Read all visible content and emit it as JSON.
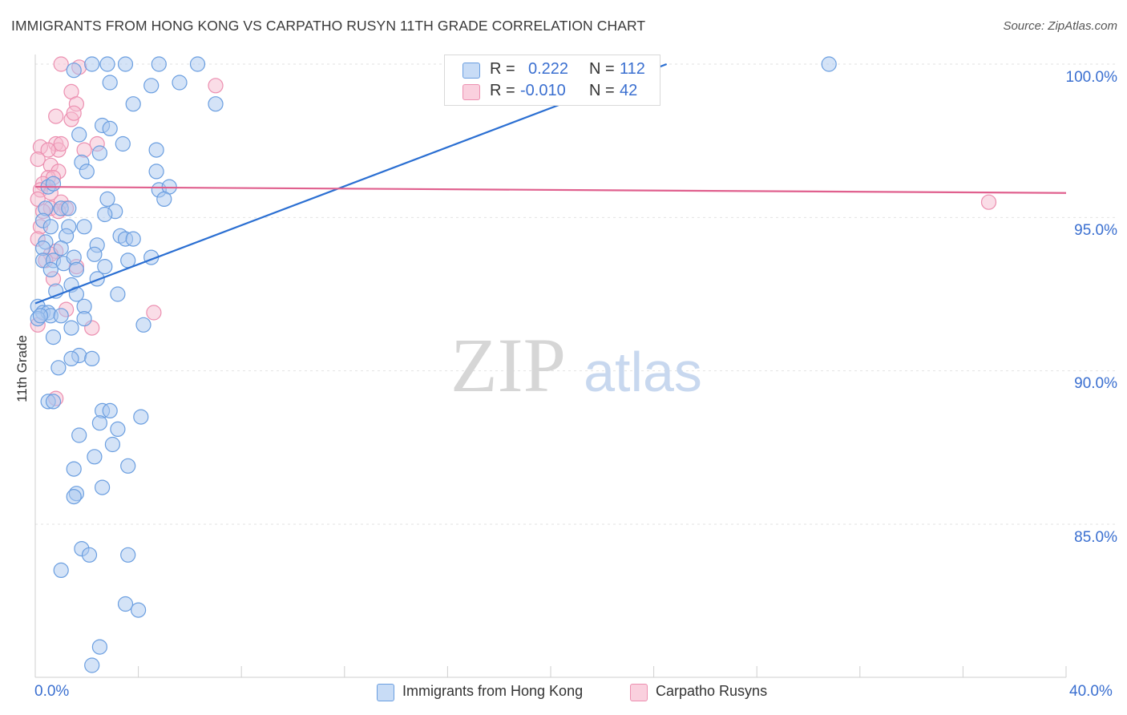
{
  "title": "IMMIGRANTS FROM HONG KONG VS CARPATHO RUSYN 11TH GRADE CORRELATION CHART",
  "source": "Source: ZipAtlas.com",
  "watermark": {
    "zip": "ZIP",
    "atlas": "atlas"
  },
  "colors": {
    "blue_fill": "#aac8f0",
    "blue_stroke": "#6a9ee0",
    "blue_line": "#2b6fd2",
    "pink_fill": "#f6bcd0",
    "pink_stroke": "#ec8fb0",
    "pink_line": "#e0608e",
    "tick_text": "#3a6fd0",
    "grid": "#e2e2e2"
  },
  "legend": {
    "rows": [
      {
        "r_label": "R =",
        "r_value": "0.222",
        "n_label": "N =",
        "n_value": "112"
      },
      {
        "r_label": "R =",
        "r_value": "-0.010",
        "n_label": "N =",
        "n_value": "42"
      }
    ]
  },
  "bottom_legend": [
    "Immigrants from Hong Kong",
    "Carpatho Rusyns"
  ],
  "x_ticks": {
    "left": "0.0%",
    "right": "40.0%"
  },
  "y_ticks": [
    "100.0%",
    "95.0%",
    "90.0%",
    "85.0%"
  ],
  "chart_data": {
    "type": "scatter",
    "title": "IMMIGRANTS FROM HONG KONG VS CARPATHO RUSYN 11TH GRADE CORRELATION CHART",
    "xlabel": "",
    "ylabel": "11th Grade",
    "xlim": [
      0,
      40
    ],
    "ylim": [
      80.3,
      100.4
    ],
    "y_gridlines": [
      100,
      95,
      90,
      85
    ],
    "series": [
      {
        "name": "Immigrants from Hong Kong",
        "color": "blue",
        "r": 0.222,
        "n": 112,
        "trend": {
          "x": [
            0,
            24.5
          ],
          "y": [
            92.2,
            100.0
          ]
        },
        "points": [
          [
            1.5,
            99.8
          ],
          [
            2.2,
            100.0
          ],
          [
            2.8,
            100.0
          ],
          [
            3.5,
            100.0
          ],
          [
            4.8,
            100.0
          ],
          [
            6.3,
            100.0
          ],
          [
            30.8,
            100.0
          ],
          [
            2.9,
            99.4
          ],
          [
            4.5,
            99.3
          ],
          [
            5.6,
            99.4
          ],
          [
            7.0,
            98.7
          ],
          [
            3.8,
            98.7
          ],
          [
            2.6,
            98.0
          ],
          [
            2.9,
            97.9
          ],
          [
            1.7,
            97.7
          ],
          [
            3.4,
            97.4
          ],
          [
            2.5,
            97.1
          ],
          [
            4.7,
            97.2
          ],
          [
            1.8,
            96.8
          ],
          [
            2.0,
            96.5
          ],
          [
            4.7,
            96.5
          ],
          [
            4.8,
            95.9
          ],
          [
            5.2,
            96.0
          ],
          [
            5.0,
            95.6
          ],
          [
            0.5,
            96.0
          ],
          [
            0.7,
            96.1
          ],
          [
            2.8,
            95.6
          ],
          [
            0.4,
            95.3
          ],
          [
            1.0,
            95.3
          ],
          [
            1.3,
            95.3
          ],
          [
            3.1,
            95.2
          ],
          [
            0.3,
            94.9
          ],
          [
            2.7,
            95.1
          ],
          [
            0.6,
            94.7
          ],
          [
            1.3,
            94.7
          ],
          [
            1.9,
            94.7
          ],
          [
            0.4,
            94.2
          ],
          [
            1.2,
            94.4
          ],
          [
            3.3,
            94.4
          ],
          [
            0.3,
            94.0
          ],
          [
            1.0,
            94.0
          ],
          [
            2.4,
            94.1
          ],
          [
            3.5,
            94.3
          ],
          [
            3.8,
            94.3
          ],
          [
            0.3,
            93.6
          ],
          [
            0.7,
            93.6
          ],
          [
            1.1,
            93.5
          ],
          [
            1.5,
            93.7
          ],
          [
            2.3,
            93.8
          ],
          [
            3.6,
            93.6
          ],
          [
            4.5,
            93.7
          ],
          [
            0.6,
            93.3
          ],
          [
            1.6,
            93.3
          ],
          [
            2.7,
            93.4
          ],
          [
            2.4,
            93.0
          ],
          [
            1.4,
            92.8
          ],
          [
            0.8,
            92.6
          ],
          [
            1.6,
            92.5
          ],
          [
            3.2,
            92.5
          ],
          [
            0.1,
            92.1
          ],
          [
            0.3,
            91.9
          ],
          [
            0.5,
            91.9
          ],
          [
            1.9,
            92.1
          ],
          [
            0.6,
            91.8
          ],
          [
            1.0,
            91.8
          ],
          [
            1.9,
            91.7
          ],
          [
            1.4,
            91.4
          ],
          [
            4.2,
            91.5
          ],
          [
            0.7,
            91.1
          ],
          [
            0.1,
            91.7
          ],
          [
            0.2,
            91.8
          ],
          [
            1.7,
            90.5
          ],
          [
            2.2,
            90.4
          ],
          [
            0.9,
            90.1
          ],
          [
            1.4,
            90.4
          ],
          [
            0.5,
            89.0
          ],
          [
            0.7,
            89.0
          ],
          [
            2.6,
            88.7
          ],
          [
            2.9,
            88.7
          ],
          [
            4.1,
            88.5
          ],
          [
            2.5,
            88.3
          ],
          [
            3.2,
            88.1
          ],
          [
            1.7,
            87.9
          ],
          [
            3.0,
            87.6
          ],
          [
            2.3,
            87.2
          ],
          [
            3.6,
            86.9
          ],
          [
            1.5,
            86.8
          ],
          [
            2.6,
            86.2
          ],
          [
            1.6,
            86.0
          ],
          [
            1.5,
            85.9
          ],
          [
            1.8,
            84.2
          ],
          [
            2.1,
            84.0
          ],
          [
            3.6,
            84.0
          ],
          [
            1.0,
            83.5
          ],
          [
            3.5,
            82.4
          ],
          [
            4.0,
            82.2
          ],
          [
            2.5,
            81.0
          ],
          [
            2.2,
            80.4
          ]
        ]
      },
      {
        "name": "Carpatho Rusyns",
        "color": "pink",
        "r": -0.01,
        "n": 42,
        "trend": {
          "x": [
            0,
            40
          ],
          "y": [
            96.0,
            95.8
          ]
        },
        "points": [
          [
            1.0,
            100.0
          ],
          [
            1.7,
            99.9
          ],
          [
            1.4,
            99.1
          ],
          [
            7.0,
            99.3
          ],
          [
            1.6,
            98.7
          ],
          [
            0.8,
            98.3
          ],
          [
            1.4,
            98.2
          ],
          [
            1.5,
            98.4
          ],
          [
            0.2,
            97.3
          ],
          [
            0.8,
            97.4
          ],
          [
            0.9,
            97.2
          ],
          [
            1.0,
            97.4
          ],
          [
            0.5,
            97.2
          ],
          [
            1.9,
            97.2
          ],
          [
            2.4,
            97.4
          ],
          [
            0.1,
            96.9
          ],
          [
            0.6,
            96.7
          ],
          [
            0.9,
            96.5
          ],
          [
            0.5,
            96.3
          ],
          [
            0.7,
            96.3
          ],
          [
            0.3,
            96.1
          ],
          [
            0.2,
            95.9
          ],
          [
            0.6,
            95.8
          ],
          [
            0.1,
            95.6
          ],
          [
            1.0,
            95.5
          ],
          [
            0.6,
            95.3
          ],
          [
            0.3,
            95.2
          ],
          [
            1.2,
            95.3
          ],
          [
            0.9,
            95.2
          ],
          [
            0.2,
            94.7
          ],
          [
            0.1,
            94.3
          ],
          [
            0.8,
            93.9
          ],
          [
            0.6,
            93.8
          ],
          [
            0.4,
            93.6
          ],
          [
            1.6,
            93.4
          ],
          [
            0.7,
            93.0
          ],
          [
            1.2,
            92.0
          ],
          [
            4.6,
            91.9
          ],
          [
            0.1,
            91.5
          ],
          [
            2.2,
            91.4
          ],
          [
            0.8,
            89.1
          ],
          [
            37.0,
            95.5
          ]
        ]
      }
    ]
  }
}
